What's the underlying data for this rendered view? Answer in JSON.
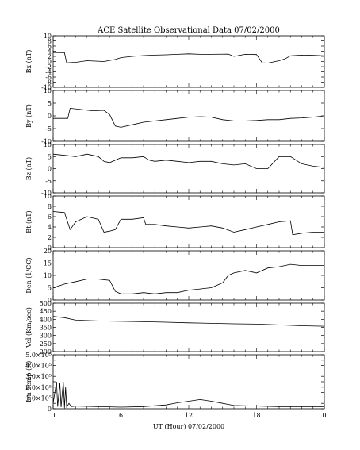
{
  "chart_data": {
    "type": "line",
    "title": "ACE Satellite Observational Data   07/02/2000",
    "xlabel": "UT (Hour)   07/02/2000",
    "x_tick_labels": [
      "0",
      "6",
      "12",
      "18",
      "0"
    ],
    "x_range": [
      0,
      24
    ],
    "panels": [
      {
        "ylabel": "Bx (nT)",
        "ylim": [
          -10,
          10
        ],
        "yticks": [
          -10,
          -8,
          -6,
          -4,
          -2,
          0,
          2,
          4,
          6,
          8,
          10
        ],
        "ytick_labels": [
          "-10",
          "-8",
          "-6",
          "-4",
          "-2",
          "0",
          "2",
          "4",
          "6",
          "8",
          "10"
        ],
        "x": [
          0,
          1.0,
          1.2,
          2.0,
          3.0,
          4.5,
          5.5,
          6.0,
          7.0,
          8.0,
          9.0,
          10.0,
          11.0,
          12.0,
          13.0,
          14.0,
          15.5,
          16.0,
          17.0,
          18.0,
          18.5,
          19.0,
          20.0,
          20.5,
          21.0,
          22.0,
          23.0,
          24.0
        ],
        "y": [
          3.5,
          3.4,
          -0.5,
          -0.3,
          0.3,
          0.0,
          0.8,
          1.5,
          2.0,
          2.3,
          2.5,
          2.6,
          2.8,
          3.0,
          2.8,
          2.8,
          2.9,
          2.0,
          2.8,
          2.7,
          -0.5,
          -0.6,
          0.3,
          1.0,
          2.2,
          2.5,
          2.4,
          2.2
        ]
      },
      {
        "ylabel": "By (nT)",
        "ylim": [
          -10,
          10
        ],
        "yticks": [
          -10,
          -5,
          0,
          5,
          10
        ],
        "ytick_labels": [
          "-10",
          "-5",
          "0",
          "5",
          "10"
        ],
        "x": [
          0,
          1.3,
          1.5,
          2.5,
          3.5,
          4.5,
          5.0,
          5.5,
          6.0,
          7.0,
          8.0,
          9.0,
          10.0,
          11.0,
          12.0,
          13.0,
          14.0,
          15.0,
          16.0,
          17.0,
          18.0,
          19.0,
          20.0,
          21.0,
          22.0,
          23.0,
          24.0
        ],
        "y": [
          -1.0,
          -1.0,
          3.0,
          2.5,
          2.0,
          2.2,
          0.5,
          -4.0,
          -4.5,
          -3.5,
          -2.5,
          -2.0,
          -1.5,
          -1.0,
          -0.5,
          -0.3,
          -0.5,
          -1.5,
          -2.0,
          -2.0,
          -1.8,
          -1.5,
          -1.5,
          -1.0,
          -0.8,
          -0.5,
          0.0
        ]
      },
      {
        "ylabel": "Bz (nT)",
        "ylim": [
          -10,
          10
        ],
        "yticks": [
          -10,
          -5,
          0,
          5,
          10
        ],
        "ytick_labels": [
          "-10",
          "-5",
          "0",
          "5",
          "10"
        ],
        "x": [
          0,
          1.0,
          2.0,
          3.0,
          4.0,
          4.5,
          5.0,
          6.0,
          7.0,
          8.0,
          8.5,
          9.0,
          10.0,
          11.0,
          12.0,
          13.0,
          14.0,
          15.0,
          16.0,
          17.0,
          18.0,
          19.0,
          20.0,
          21.0,
          21.5,
          22.0,
          23.0,
          24.0
        ],
        "y": [
          6.0,
          5.5,
          5.0,
          6.0,
          5.0,
          3.0,
          2.5,
          4.5,
          4.5,
          5.0,
          3.5,
          3.0,
          3.5,
          3.0,
          2.5,
          3.0,
          3.0,
          2.0,
          1.5,
          2.0,
          0.0,
          0.0,
          5.0,
          5.0,
          3.5,
          2.0,
          1.0,
          0.5
        ]
      },
      {
        "ylabel": "Bt (nT)",
        "ylim": [
          0,
          10
        ],
        "yticks": [
          0,
          2,
          4,
          6,
          8,
          10
        ],
        "ytick_labels": [
          "0",
          "2",
          "4",
          "6",
          "8",
          "10"
        ],
        "x": [
          0,
          1.0,
          1.5,
          2.0,
          3.0,
          4.0,
          4.5,
          5.0,
          5.5,
          6.0,
          7.0,
          8.0,
          8.2,
          9.0,
          10.0,
          11.0,
          12.0,
          13.0,
          14.0,
          15.0,
          16.0,
          17.0,
          18.0,
          19.0,
          20.0,
          21.0,
          21.2,
          22.0,
          23.0,
          24.0
        ],
        "y": [
          7.0,
          6.8,
          3.5,
          5.0,
          6.0,
          5.5,
          3.0,
          3.2,
          3.5,
          5.5,
          5.5,
          5.8,
          4.5,
          4.5,
          4.2,
          4.0,
          3.8,
          4.0,
          4.2,
          3.8,
          3.0,
          3.5,
          4.0,
          4.5,
          5.0,
          5.2,
          2.5,
          2.8,
          3.0,
          3.0
        ]
      },
      {
        "ylabel": "Den (1/CC)",
        "ylim": [
          0,
          20
        ],
        "yticks": [
          0,
          5,
          10,
          15,
          20
        ],
        "ytick_labels": [
          "0",
          "5",
          "10",
          "15",
          "20"
        ],
        "x": [
          0,
          1.0,
          2.0,
          3.0,
          4.0,
          5.0,
          5.5,
          6.0,
          7.0,
          8.0,
          9.0,
          10.0,
          11.0,
          12.0,
          13.0,
          14.0,
          15.0,
          15.5,
          16.0,
          17.0,
          18.0,
          19.0,
          20.0,
          21.0,
          22.0,
          23.0,
          24.0
        ],
        "y": [
          5.0,
          6.5,
          7.5,
          8.5,
          8.5,
          8.0,
          3.5,
          2.5,
          2.5,
          3.0,
          2.5,
          3.0,
          3.0,
          4.0,
          4.5,
          5.0,
          7.0,
          10.0,
          11.0,
          12.0,
          11.0,
          13.0,
          13.5,
          14.5,
          14.0,
          14.0,
          14.0
        ]
      },
      {
        "ylabel": "Vel (Km/sec)",
        "ylim": [
          200,
          500
        ],
        "yticks": [
          200,
          250,
          300,
          350,
          400,
          450,
          500
        ],
        "ytick_labels": [
          "200",
          "250",
          "300",
          "350",
          "400",
          "450",
          "500"
        ],
        "x": [
          0,
          1.0,
          2.0,
          4.0,
          6.0,
          8.0,
          10.0,
          12.0,
          14.0,
          16.0,
          18.0,
          20.0,
          22.0,
          24.0
        ],
        "y": [
          418,
          410,
          395,
          390,
          388,
          385,
          382,
          378,
          375,
          372,
          370,
          365,
          360,
          357
        ]
      },
      {
        "ylabel": "Ion Temp (K)",
        "ylim": [
          0,
          500000
        ],
        "yticks": [
          0,
          50000,
          100000,
          150000,
          200000,
          250000,
          300000,
          350000,
          400000,
          450000,
          500000
        ],
        "ytick_labels": [
          "0",
          "",
          "1.0×10⁵",
          "",
          "2.0×10⁵",
          "",
          "3.0×10⁵",
          "",
          "4.0×10⁵",
          "",
          "5.0×10⁵"
        ],
        "x": [
          0,
          0.3,
          0.4,
          0.6,
          0.7,
          0.9,
          1.0,
          1.1,
          1.2,
          1.4,
          1.6,
          2.0,
          4.0,
          6.0,
          8.0,
          10.0,
          11.0,
          12.0,
          13.0,
          14.0,
          15.0,
          16.0,
          18.0,
          20.0,
          22.0,
          24.0
        ],
        "y": [
          50000,
          250000,
          20000,
          240000,
          15000,
          250000,
          10000,
          200000,
          15000,
          50000,
          20000,
          25000,
          20000,
          15000,
          20000,
          35000,
          55000,
          70000,
          85000,
          70000,
          50000,
          30000,
          25000,
          20000,
          20000,
          20000
        ]
      }
    ]
  }
}
